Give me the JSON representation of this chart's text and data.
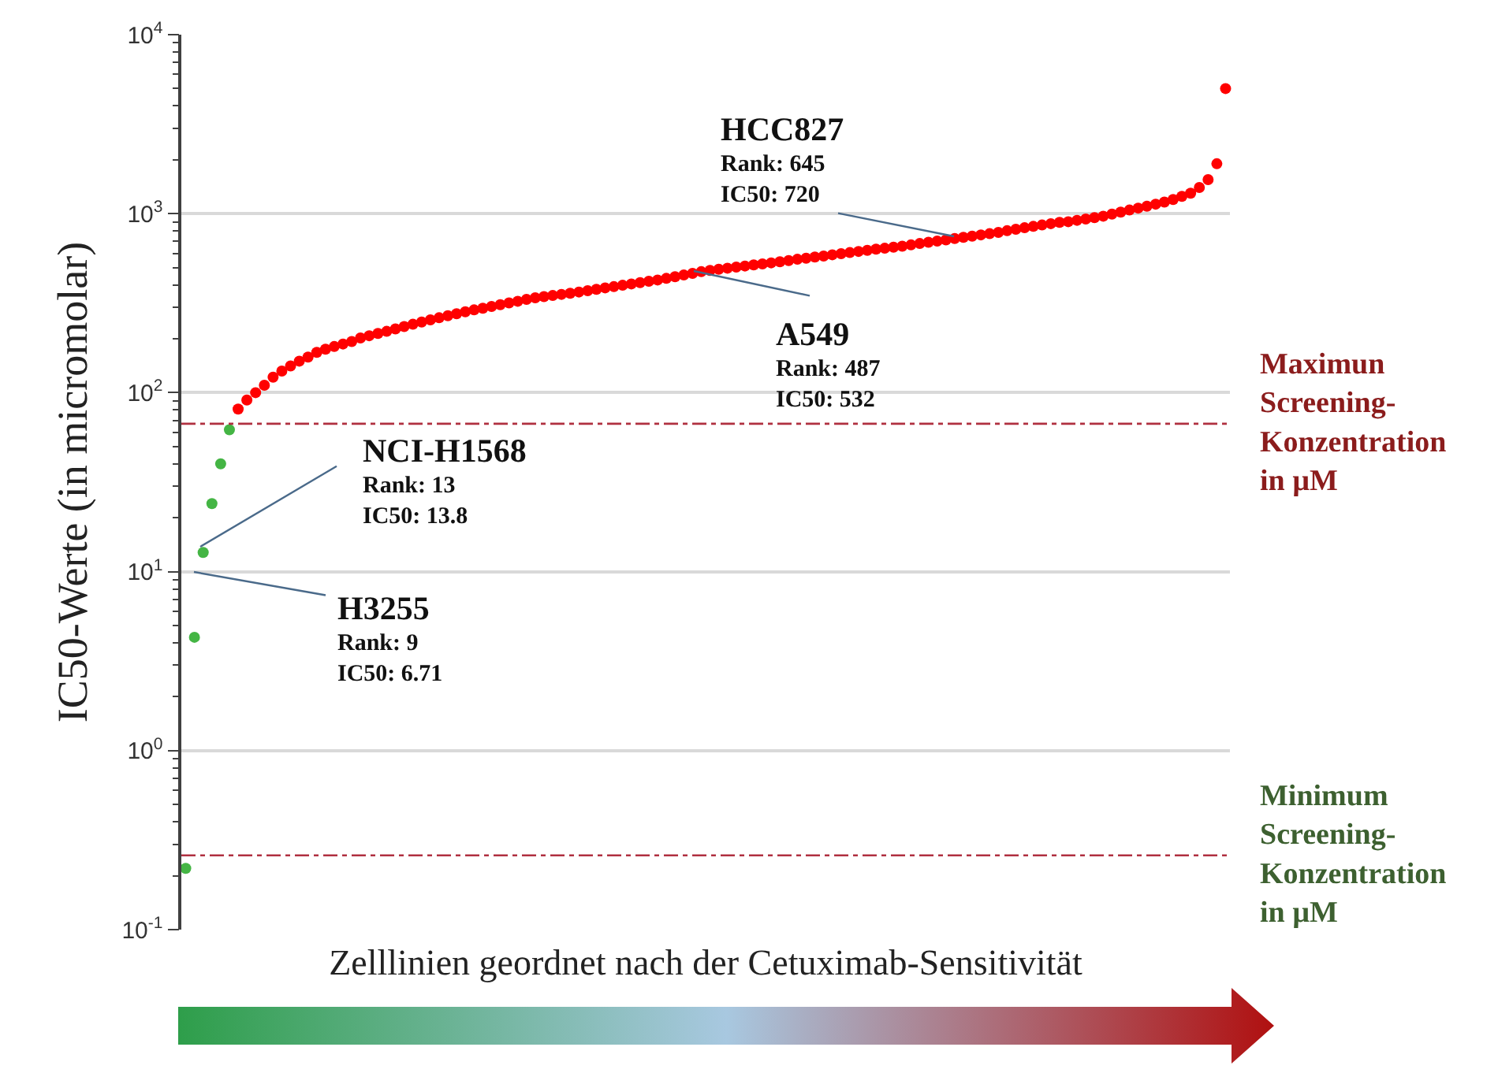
{
  "chart_data": {
    "type": "scatter",
    "xlabel": "Zelllinien geordnet nach der Cetuximab-Sensitivität",
    "ylabel": "IC50-Werte (in micromolar)",
    "categories": [
      null,
      null,
      null,
      null,
      null,
      null,
      null,
      null,
      null,
      null,
      null,
      null,
      null,
      null,
      null,
      null,
      null,
      null,
      null,
      null,
      null,
      null,
      null,
      null,
      null,
      null,
      null,
      null,
      null,
      null,
      null,
      null,
      null,
      null,
      null,
      null,
      null,
      null,
      null,
      null,
      null,
      null,
      null,
      null,
      null,
      null,
      null,
      null,
      null,
      null,
      null,
      null,
      null,
      null,
      null,
      null,
      null,
      null,
      null,
      null,
      null,
      null,
      null,
      null,
      null,
      null,
      null,
      null,
      null,
      null,
      null,
      null,
      null,
      null,
      null,
      null,
      null,
      null,
      null,
      null,
      null,
      null,
      null,
      null,
      null,
      null,
      null,
      null,
      null,
      null,
      null,
      null,
      null,
      null,
      null,
      null,
      null,
      null,
      null,
      null,
      null,
      null,
      null,
      null,
      null,
      null,
      null,
      null,
      null,
      null,
      null,
      null,
      null,
      null,
      null,
      null,
      null,
      null,
      null,
      null
    ],
    "series": [
      {
        "color": "#44b544",
        "values": [
          0.22,
          4.3,
          12.8,
          24,
          40,
          62,
          null,
          null,
          null,
          null,
          null,
          null,
          null,
          null,
          null,
          null,
          null,
          null,
          null,
          null,
          null,
          null,
          null,
          null,
          null,
          null,
          null,
          null,
          null,
          null,
          null,
          null,
          null,
          null,
          null,
          null,
          null,
          null,
          null,
          null,
          null,
          null,
          null,
          null,
          null,
          null,
          null,
          null,
          null,
          null,
          null,
          null,
          null,
          null,
          null,
          null,
          null,
          null,
          null,
          null,
          null,
          null,
          null,
          null,
          null,
          null,
          null,
          null,
          null,
          null,
          null,
          null,
          null,
          null,
          null,
          null,
          null,
          null,
          null,
          null,
          null,
          null,
          null,
          null,
          null,
          null,
          null,
          null,
          null,
          null,
          null,
          null,
          null,
          null,
          null,
          null,
          null,
          null,
          null,
          null,
          null,
          null,
          null,
          null,
          null,
          null,
          null,
          null,
          null,
          null,
          null,
          null,
          null,
          null,
          null,
          null,
          null,
          null,
          null,
          null
        ]
      },
      {
        "color": "#ff0000",
        "values": [
          null,
          null,
          null,
          null,
          null,
          null,
          81,
          91,
          100,
          110,
          122,
          132,
          141,
          150,
          158,
          168,
          175,
          181,
          187,
          193,
          202,
          208,
          214,
          220,
          227,
          234,
          241,
          248,
          255,
          262,
          269,
          276,
          283,
          290,
          296,
          303,
          310,
          317,
          324,
          332,
          339,
          344,
          349,
          354,
          359,
          365,
          371,
          378,
          385,
          391,
          398,
          405,
          412,
          419,
          426,
          435,
          444,
          454,
          464,
          474,
          482,
          489,
          496,
          503,
          510,
          517,
          524,
          531,
          539,
          547,
          556,
          564,
          572,
          580,
          589,
          598,
          606,
          615,
          624,
          633,
          641,
          650,
          658,
          669,
          681,
          692,
          703,
          714,
          726,
          738,
          749,
          761,
          773,
          786,
          803,
          818,
          834,
          849,
          864,
          879,
          894,
          902,
          918,
          934,
          950,
          968,
          995,
          1020,
          1048,
          1074,
          1100,
          1130,
          1160,
          1200,
          1250,
          1300,
          1400,
          1550,
          1900,
          5000
        ]
      }
    ],
    "log": "y",
    "ylim": [
      0.1,
      10000
    ],
    "yticks": [
      {
        "value": 0.1,
        "label": "10$^{-1}$"
      },
      {
        "value": 1,
        "label": "10$^{0}$"
      },
      {
        "value": 10,
        "label": "10$^{1}$"
      },
      {
        "value": 100,
        "label": "10$^{2}$"
      },
      {
        "value": 1000,
        "label": "10$^{3}$"
      },
      {
        "value": 10000,
        "label": "10$^{4}$"
      }
    ],
    "grid": "y",
    "tick_labels": "y",
    "marker": "circle",
    "ref_lines": [
      {
        "axis": "y",
        "value": 67,
        "label": "Maximun\nScreening-\nKonzentration\nin µM",
        "color": "#b03040",
        "line_style": "dashdot"
      },
      {
        "axis": "y",
        "value": 0.26,
        "label": "Minimum\nScreening-\nKonzentration\nin µM",
        "color": "#b03040",
        "line_style": "dashdot"
      }
    ],
    "annotations": [
      "HCC827\nRank: 645\nIC50: 720",
      "A549\nRank: 487\nIC50: 532",
      "NCI-H1568\nRank: 13\nIC50: 13.8",
      "H3255\nRank: 9\nIC50: 6.71"
    ]
  }
}
